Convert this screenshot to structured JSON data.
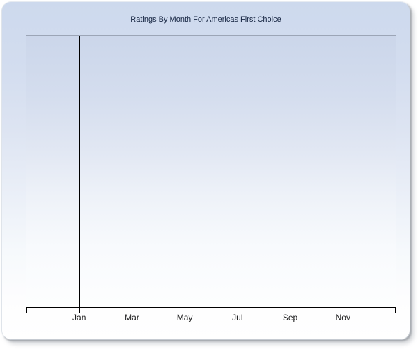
{
  "chart_data": {
    "type": "line",
    "title": "Ratings By Month For Americas First Choice",
    "x_tick_labels": [
      "Jan",
      "Mar",
      "May",
      "Jul",
      "Sep",
      "Nov"
    ],
    "x_columns": 7,
    "series": [],
    "y_tick_labels": [],
    "grid": "vertical gridlines only",
    "legend": "none",
    "plot_note": "no data points plotted",
    "colors": {
      "title": "#152441",
      "axis_and_gridlines": "#000000",
      "tick_labels": "#1c1c1c",
      "plot_top_border": "#9ca5b6",
      "panel_gradient_top": "#cdd9ed",
      "panel_gradient_bottom": "#ffffff"
    }
  }
}
